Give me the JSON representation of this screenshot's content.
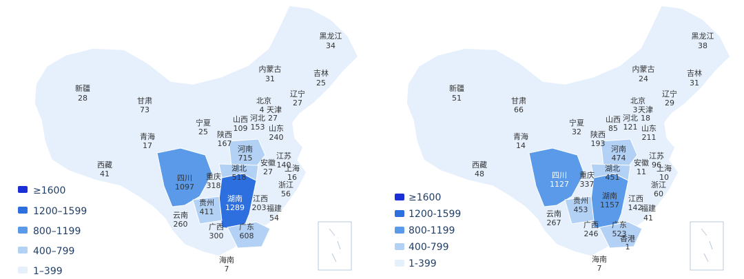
{
  "legend_colors": {
    "ge1600": "#1a2fd6",
    "r1200_1599": "#2e6fe0",
    "r800_1199": "#5b9ae8",
    "r400_799": "#b3d1f5",
    "r1_399": "#e6f0fc"
  },
  "maps": [
    {
      "legend": [
        {
          "label": "≥1600",
          "color": "#1a2fd6"
        },
        {
          "label": "1200–1599",
          "color": "#2e6fe0"
        },
        {
          "label": "800–1199",
          "color": "#5b9ae8"
        },
        {
          "label": "400–799",
          "color": "#b3d1f5"
        },
        {
          "label": "1–399",
          "color": "#e6f0fc"
        }
      ],
      "provinces": [
        {
          "name": "黑龙江",
          "value": "34"
        },
        {
          "name": "内蒙古",
          "value": "31"
        },
        {
          "name": "吉林",
          "value": "25"
        },
        {
          "name": "新疆",
          "value": "28"
        },
        {
          "name": "辽宁",
          "value": "27"
        },
        {
          "name": "甘肃",
          "value": "73"
        },
        {
          "name": "北京",
          "value": "4"
        },
        {
          "name": "天津",
          "value": "27"
        },
        {
          "name": "宁夏",
          "value": "25"
        },
        {
          "name": "山西",
          "value": "109"
        },
        {
          "name": "河北",
          "value": "153"
        },
        {
          "name": "山东",
          "value": "240"
        },
        {
          "name": "陕西",
          "value": "167"
        },
        {
          "name": "青海",
          "value": "17"
        },
        {
          "name": "河南",
          "value": "715"
        },
        {
          "name": "江苏",
          "value": "140"
        },
        {
          "name": "西藏",
          "value": "41"
        },
        {
          "name": "湖北",
          "value": "518"
        },
        {
          "name": "安徽",
          "value": "27"
        },
        {
          "name": "上海",
          "value": "16"
        },
        {
          "name": "四川",
          "value": "1097"
        },
        {
          "name": "重庆",
          "value": "318"
        },
        {
          "name": "浙江",
          "value": "56"
        },
        {
          "name": "贵州",
          "value": "411"
        },
        {
          "name": "湖南",
          "value": "1289"
        },
        {
          "name": "江西",
          "value": "203"
        },
        {
          "name": "福建",
          "value": "54"
        },
        {
          "name": "云南",
          "value": "260"
        },
        {
          "name": "广西",
          "value": "300"
        },
        {
          "name": "广东",
          "value": "608"
        },
        {
          "name": "海南",
          "value": "7"
        }
      ]
    },
    {
      "legend": [
        {
          "label": "≥1600",
          "color": "#1a2fd6"
        },
        {
          "label": "1200-1599",
          "color": "#2e6fe0"
        },
        {
          "label": "800-1199",
          "color": "#5b9ae8"
        },
        {
          "label": "400-799",
          "color": "#b3d1f5"
        },
        {
          "label": "1-399",
          "color": "#e6f0fc"
        }
      ],
      "provinces": [
        {
          "name": "黑龙江",
          "value": "38"
        },
        {
          "name": "内蒙古",
          "value": "24"
        },
        {
          "name": "吉林",
          "value": "31"
        },
        {
          "name": "新疆",
          "value": "51"
        },
        {
          "name": "辽宁",
          "value": "29"
        },
        {
          "name": "甘肃",
          "value": "66"
        },
        {
          "name": "北京",
          "value": "3"
        },
        {
          "name": "天津",
          "value": "18"
        },
        {
          "name": "宁夏",
          "value": "32"
        },
        {
          "name": "山西",
          "value": "85"
        },
        {
          "name": "河北",
          "value": "121"
        },
        {
          "name": "山东",
          "value": "211"
        },
        {
          "name": "陕西",
          "value": "193"
        },
        {
          "name": "青海",
          "value": "14"
        },
        {
          "name": "河南",
          "value": "474"
        },
        {
          "name": "江苏",
          "value": "96"
        },
        {
          "name": "西藏",
          "value": "48"
        },
        {
          "name": "湖北",
          "value": "451"
        },
        {
          "name": "安徽",
          "value": "11"
        },
        {
          "name": "上海",
          "value": "10"
        },
        {
          "name": "四川",
          "value": "1127"
        },
        {
          "name": "重庆",
          "value": "337"
        },
        {
          "name": "浙江",
          "value": "60"
        },
        {
          "name": "贵州",
          "value": "453"
        },
        {
          "name": "湖南",
          "value": "1157"
        },
        {
          "name": "江西",
          "value": "142"
        },
        {
          "name": "福建",
          "value": "41"
        },
        {
          "name": "云南",
          "value": "267"
        },
        {
          "name": "广西",
          "value": "246"
        },
        {
          "name": "广东",
          "value": "523"
        },
        {
          "name": "香港",
          "value": "1"
        },
        {
          "name": "海南",
          "value": "7"
        }
      ]
    }
  ]
}
